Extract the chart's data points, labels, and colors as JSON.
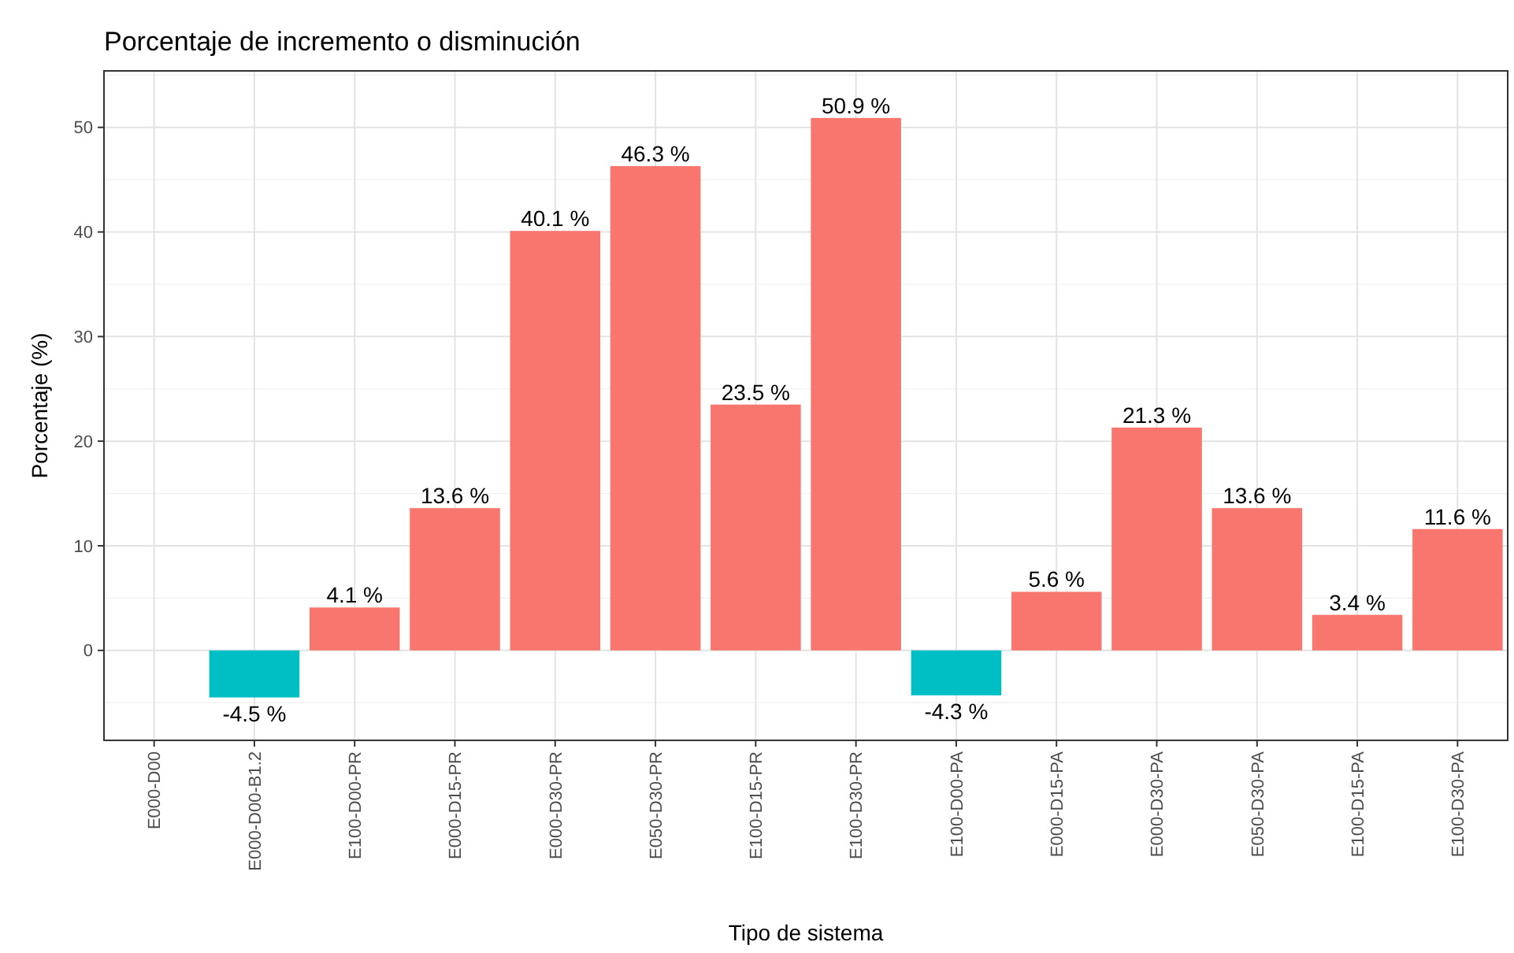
{
  "chart_data": {
    "type": "bar",
    "title": "Porcentaje de incremento o disminución",
    "xlabel": "Tipo de sistema",
    "ylabel": "Porcentaje (%)",
    "categories": [
      "E000-D00",
      "E000-D00-B1.2",
      "E100-D00-PR",
      "E000-D15-PR",
      "E000-D30-PR",
      "E050-D30-PR",
      "E100-D15-PR",
      "E100-D30-PR",
      "E100-D00-PA",
      "E000-D15-PA",
      "E000-D30-PA",
      "E050-D30-PA",
      "E100-D15-PA",
      "E100-D30-PA"
    ],
    "values": [
      0,
      -4.5,
      4.1,
      13.6,
      40.1,
      46.3,
      23.5,
      50.9,
      -4.3,
      5.6,
      21.3,
      13.6,
      3.4,
      11.6
    ],
    "colors": [
      "#f8766d",
      "#00bfc4",
      "#f8766d",
      "#f8766d",
      "#f8766d",
      "#f8766d",
      "#f8766d",
      "#f8766d",
      "#00bfc4",
      "#f8766d",
      "#f8766d",
      "#f8766d",
      "#f8766d",
      "#f8766d"
    ],
    "value_labels": [
      null,
      "-4.5 %",
      "4.1 %",
      "13.6 %",
      "40.1 %",
      "46.3 %",
      "23.5 %",
      "50.9 %",
      "-4.3 %",
      "5.6 %",
      "21.3 %",
      "13.6 %",
      "3.4 %",
      "11.6 %"
    ],
    "ylim": [
      -8.6,
      55.4
    ],
    "yticks": [
      0,
      10,
      20,
      30,
      40,
      50
    ],
    "grid": true
  }
}
